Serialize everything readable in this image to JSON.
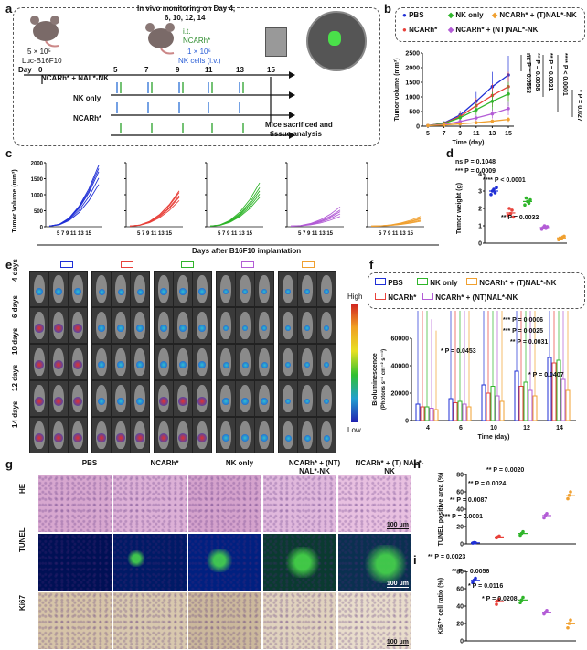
{
  "panels": {
    "a": {
      "label": "a",
      "monitor_text": "In vivo monitoring on Day  4,",
      "monitor_days": "6,  10,  12,  14",
      "it_text": "i.t.",
      "ncarh_text": "NCARh*",
      "inoc_text": "5 × 10⁵",
      "inoc_cells": "Luc-B16F10",
      "nk_text": "1 × 10⁶",
      "nk_cells": "NK cells (i.v.)",
      "day_label": "Day",
      "days": [
        "0",
        "5",
        "7",
        "9",
        "11",
        "13",
        "15"
      ],
      "groups": [
        "NCARh* + NAL*-NK",
        "NK only",
        "NCARh*"
      ],
      "end_text": "Mice sacrificed and",
      "end_text2": "tissue analysis"
    },
    "b": {
      "label": "b",
      "legend": [
        "PBS",
        "NK only",
        "NCARh* + (T)NAL*-NK",
        "NCARh*",
        "NCARh* + (NT)NAL*-NK"
      ],
      "ylabel": "Tumor volume (mm³)",
      "xlabel": "Time (day)",
      "stats": [
        "ns P = 0.0553",
        "** P = 0.0058",
        "** P = 0.0021",
        "**** P < 0.0001",
        "* P = 0.027"
      ]
    },
    "c": {
      "label": "c",
      "ylabel": "Tumor Volume (mm³)",
      "xlabel": "Days after B16F10 implantation",
      "ticks_y": [
        "2000",
        "1500",
        "1000",
        "500",
        "0"
      ],
      "ticks_x": "5 7 9 11 13 15"
    },
    "d": {
      "label": "d",
      "ylabel": "Tumor weight (g)",
      "stats": [
        "ns P = 0.1048",
        "*** P = 0.0009",
        "**** P < 0.0001",
        "** P = 0.0032"
      ]
    },
    "e": {
      "label": "e",
      "rows": [
        "4 days",
        "6 days",
        "10 days",
        "12 days",
        "14 days"
      ],
      "high": "High",
      "low": "Low"
    },
    "f": {
      "label": "f",
      "legend": [
        "PBS",
        "NK only",
        "NCARh* + (T)NAL*-NK",
        "NCARh*",
        "NCARh* + (NT)NAL*-NK"
      ],
      "ylabel": "Bioluminescence",
      "ylabel2": "(Photons s⁻¹ cm⁻² sr⁻¹)",
      "xlabel": "Time (day)",
      "stats": [
        "*** P = 0.0006",
        "*** P = 0.0025",
        "** P = 0.0031",
        "* P = 0.0453",
        "* P = 0.0407"
      ]
    },
    "g": {
      "label": "g",
      "cols": [
        "PBS",
        "NCARh*",
        "NK only",
        "NCARh* + (NT) NAL*-NK",
        "NCARh* + (T) NAL*-NK"
      ],
      "rows": [
        "HE",
        "TUNEL",
        "Ki67"
      ],
      "scale": "100 μm"
    },
    "h": {
      "label": "h",
      "ylabel": "TUNEL positive area (%)",
      "stats": [
        "** P = 0.0020",
        "** P = 0.0024",
        "** P = 0.0087",
        "*** P = 0.0001"
      ]
    },
    "i": {
      "label": "i",
      "ylabel": "Ki67⁺ cell ratio (%)",
      "stats": [
        "** P = 0.0023",
        "** P = 0.0056",
        "* P = 0.0116",
        "* P = 0.0208"
      ]
    }
  },
  "colors": {
    "pbs": "#1f2fd6",
    "ncarh": "#e8413a",
    "nk": "#2fb52a",
    "nt": "#b35cd6",
    "t": "#f0a030"
  },
  "chart_data": [
    {
      "type": "line",
      "id": "b",
      "x": [
        5,
        7,
        9,
        11,
        13,
        15
      ],
      "xlabel": "Time (day)",
      "ylabel": "Tumor volume (mm³)",
      "ylim": [
        0,
        2500
      ],
      "yticks": [
        0,
        500,
        1000,
        1500,
        2000,
        2500
      ],
      "series": [
        {
          "name": "PBS",
          "values": [
            20,
            110,
            380,
            850,
            1350,
            1750
          ]
        },
        {
          "name": "NCARh*",
          "values": [
            20,
            100,
            330,
            700,
            1050,
            1350
          ]
        },
        {
          "name": "NK only",
          "values": [
            20,
            90,
            290,
            560,
            850,
            1100
          ]
        },
        {
          "name": "NCARh* + (NT)NAL*-NK",
          "values": [
            20,
            60,
            160,
            280,
            420,
            600
          ]
        },
        {
          "name": "NCARh* + (T)NAL*-NK",
          "values": [
            20,
            40,
            80,
            120,
            170,
            230
          ]
        }
      ]
    },
    {
      "type": "scatter",
      "id": "d",
      "ylabel": "Tumor weight (g)",
      "ylim": [
        0,
        4
      ],
      "yticks": [
        0,
        1,
        2,
        3,
        4
      ],
      "series": [
        {
          "name": "PBS",
          "values": [
            2.8,
            3.0,
            3.1,
            2.9,
            3.2
          ]
        },
        {
          "name": "NCARh*",
          "values": [
            1.6,
            2.0,
            1.7,
            1.9,
            1.5
          ]
        },
        {
          "name": "NK only",
          "values": [
            2.2,
            2.6,
            2.4,
            2.3,
            2.5
          ]
        },
        {
          "name": "NCARh* + (NT)NAL*-NK",
          "values": [
            0.8,
            0.9,
            1.0,
            0.85,
            0.95
          ]
        },
        {
          "name": "NCARh* + (T)NAL*-NK",
          "values": [
            0.2,
            0.3,
            0.25,
            0.35,
            0.4
          ]
        }
      ]
    },
    {
      "type": "bar",
      "id": "f",
      "categories": [
        "4",
        "6",
        "10",
        "12",
        "14"
      ],
      "xlabel": "Time (day)",
      "ylim": [
        0,
        60000
      ],
      "yticks": [
        0,
        20000,
        40000,
        60000
      ],
      "series": [
        {
          "name": "PBS",
          "values": [
            12000,
            16000,
            26000,
            36000,
            46000
          ]
        },
        {
          "name": "NCARh*",
          "values": [
            10000,
            13000,
            20000,
            25000,
            42000
          ]
        },
        {
          "name": "NK only",
          "values": [
            10000,
            14000,
            25000,
            28000,
            44000
          ]
        },
        {
          "name": "NCARh* + (NT)NAL*-NK",
          "values": [
            9000,
            12000,
            18000,
            22000,
            30000
          ]
        },
        {
          "name": "NCARh* + (T)NAL*-NK",
          "values": [
            8000,
            10000,
            14000,
            18000,
            22000
          ]
        }
      ]
    },
    {
      "type": "scatter",
      "id": "h",
      "ylabel": "TUNEL positive area (%)",
      "ylim": [
        0,
        80
      ],
      "yticks": [
        0,
        20,
        40,
        60,
        80
      ],
      "series": [
        {
          "name": "PBS",
          "values": [
            1,
            1.5,
            1.2
          ]
        },
        {
          "name": "NCARh*",
          "values": [
            7,
            8,
            9
          ]
        },
        {
          "name": "NK only",
          "values": [
            10,
            12,
            14
          ]
        },
        {
          "name": "NCARh* + (NT)NAL*-NK",
          "values": [
            30,
            33,
            35
          ]
        },
        {
          "name": "NCARh* + (T)NAL*-NK",
          "values": [
            52,
            56,
            60
          ]
        }
      ]
    },
    {
      "type": "scatter",
      "id": "i",
      "ylabel": "Ki67⁺ cell ratio (%)",
      "ylim": [
        0,
        80
      ],
      "yticks": [
        0,
        20,
        40,
        60,
        80
      ],
      "series": [
        {
          "name": "PBS",
          "values": [
            67,
            70,
            72
          ]
        },
        {
          "name": "NCARh*",
          "values": [
            42,
            46,
            48
          ]
        },
        {
          "name": "NK only",
          "values": [
            44,
            47,
            50
          ]
        },
        {
          "name": "NCARh* + (NT)NAL*-NK",
          "values": [
            31,
            33,
            35
          ]
        },
        {
          "name": "NCARh* + (T)NAL*-NK",
          "values": [
            15,
            20,
            24
          ]
        }
      ]
    }
  ]
}
